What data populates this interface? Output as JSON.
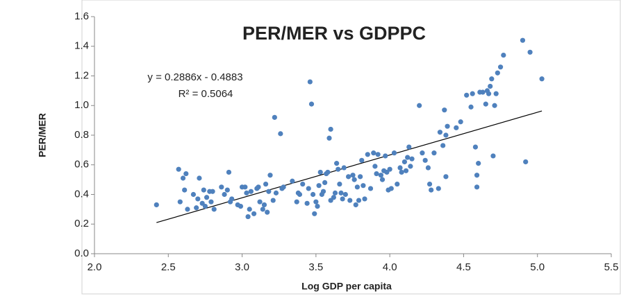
{
  "chart_data": {
    "type": "scatter",
    "title": "PER/MER vs GDPPC",
    "x_label": "Log GDP per capita",
    "y_label": "PER/MER",
    "equation": "y = 0.2886x - 0.4883",
    "r_squared": "R² = 0.5064",
    "color": "#4f81bd",
    "trendline": {
      "slope": 0.2886,
      "intercept": -0.4883,
      "xrange": [
        2.42,
        5.03
      ]
    },
    "xlim": [
      2.0,
      5.5
    ],
    "ylim": [
      0.0,
      1.6
    ],
    "xticks": [
      {
        "value": 2,
        "label": "2.0"
      },
      2.5,
      {
        "value": 3,
        "label": "3.0"
      },
      3.5,
      {
        "value": 4,
        "label": "4.0"
      },
      4.5,
      {
        "value": 5,
        "label": "5.0"
      },
      5.5
    ],
    "yticks": [
      {
        "value": 0,
        "label": "0.0"
      },
      0.2,
      0.4,
      0.6,
      0.8,
      {
        "value": 1,
        "label": "1.0"
      },
      1.2,
      1.4,
      1.6
    ],
    "x": [
      2.42,
      2.57,
      2.58,
      2.6,
      2.61,
      2.62,
      2.63,
      2.67,
      2.69,
      2.7,
      2.71,
      2.73,
      2.74,
      2.75,
      2.76,
      2.78,
      2.79,
      2.8,
      2.81,
      2.86,
      2.88,
      2.9,
      2.91,
      2.92,
      2.93,
      2.97,
      2.99,
      3.0,
      3.02,
      3.03,
      3.04,
      3.05,
      3.06,
      3.08,
      3.1,
      3.11,
      3.12,
      3.14,
      3.15,
      3.16,
      3.17,
      3.18,
      3.19,
      3.21,
      3.22,
      3.23,
      3.26,
      3.27,
      3.28,
      3.34,
      3.37,
      3.38,
      3.39,
      3.41,
      3.44,
      3.45,
      3.46,
      3.47,
      3.48,
      3.49,
      3.5,
      3.51,
      3.52,
      3.53,
      3.54,
      3.55,
      3.56,
      3.57,
      3.58,
      3.59,
      3.6,
      3.6,
      3.62,
      3.63,
      3.64,
      3.65,
      3.66,
      3.67,
      3.68,
      3.69,
      3.7,
      3.72,
      3.73,
      3.75,
      3.76,
      3.77,
      3.78,
      3.79,
      3.8,
      3.81,
      3.82,
      3.83,
      3.85,
      3.87,
      3.89,
      3.9,
      3.91,
      3.92,
      3.94,
      3.95,
      3.96,
      3.97,
      3.98,
      3.99,
      4.0,
      4.01,
      4.03,
      4.05,
      4.07,
      4.08,
      4.1,
      4.11,
      4.12,
      4.13,
      4.14,
      4.15,
      4.2,
      4.22,
      4.24,
      4.26,
      4.27,
      4.28,
      4.3,
      4.33,
      4.34,
      4.36,
      4.37,
      4.38,
      4.39,
      4.38,
      4.45,
      4.48,
      4.52,
      4.55,
      4.56,
      4.58,
      4.59,
      4.59,
      4.6,
      4.61,
      4.63,
      4.65,
      4.66,
      4.67,
      4.68,
      4.69,
      4.7,
      4.71,
      4.72,
      4.73,
      4.75,
      4.77,
      4.9,
      4.92,
      4.95,
      5.03
    ],
    "values": [
      0.33,
      0.57,
      0.35,
      0.51,
      0.43,
      0.54,
      0.3,
      0.4,
      0.31,
      0.37,
      0.51,
      0.34,
      0.43,
      0.32,
      0.38,
      0.42,
      0.35,
      0.42,
      0.3,
      0.45,
      0.4,
      0.43,
      0.55,
      0.35,
      0.37,
      0.33,
      0.32,
      0.45,
      0.45,
      0.41,
      0.25,
      0.3,
      0.42,
      0.27,
      0.44,
      0.45,
      0.35,
      0.3,
      0.33,
      0.47,
      0.28,
      0.42,
      0.53,
      0.36,
      0.92,
      0.41,
      0.81,
      0.44,
      0.45,
      0.49,
      0.35,
      0.41,
      0.4,
      0.47,
      0.34,
      0.44,
      1.16,
      1.01,
      0.4,
      0.27,
      0.35,
      0.32,
      0.46,
      0.55,
      0.4,
      0.42,
      0.48,
      0.54,
      0.55,
      0.78,
      0.84,
      0.36,
      0.38,
      0.41,
      0.61,
      0.57,
      0.47,
      0.41,
      0.37,
      0.58,
      0.4,
      0.52,
      0.36,
      0.53,
      0.5,
      0.33,
      0.45,
      0.36,
      0.52,
      0.63,
      0.46,
      0.37,
      0.67,
      0.44,
      0.68,
      0.59,
      0.54,
      0.67,
      0.53,
      0.5,
      0.56,
      0.66,
      0.55,
      0.43,
      0.57,
      0.44,
      0.68,
      0.47,
      0.58,
      0.55,
      0.62,
      0.56,
      0.65,
      0.72,
      0.59,
      0.64,
      1.0,
      0.68,
      0.63,
      0.58,
      0.47,
      0.43,
      0.68,
      0.44,
      0.82,
      0.73,
      0.97,
      0.8,
      0.86,
      0.52,
      0.85,
      0.89,
      1.07,
      0.99,
      1.08,
      0.72,
      0.53,
      0.45,
      0.61,
      1.09,
      1.09,
      1.01,
      1.1,
      1.08,
      1.13,
      1.18,
      0.66,
      1.0,
      1.08,
      1.22,
      1.26,
      1.34,
      1.44,
      0.62,
      1.36,
      1.18
    ]
  }
}
